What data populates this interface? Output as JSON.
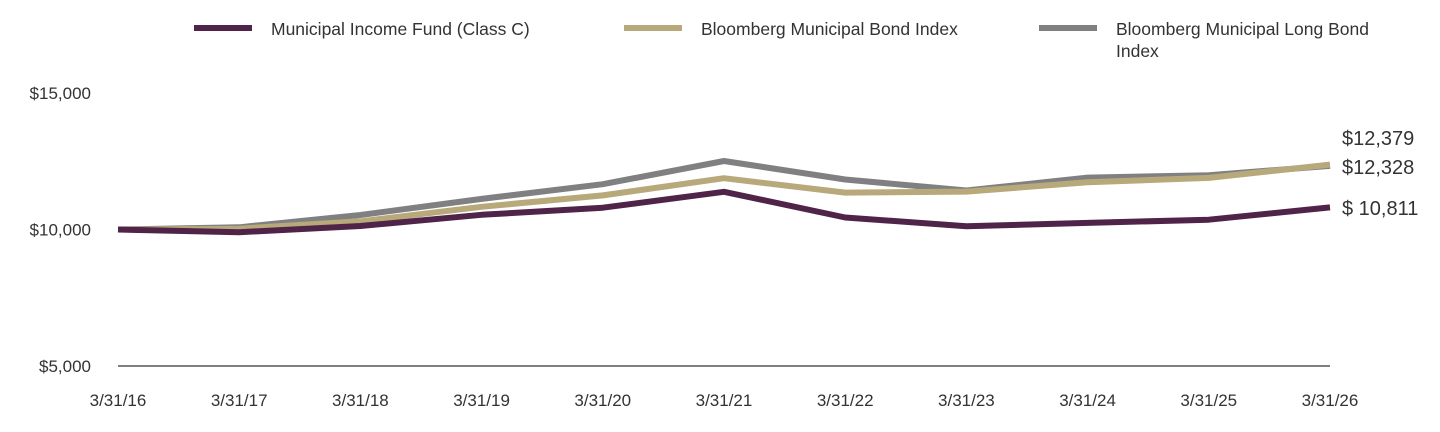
{
  "chart_data": {
    "type": "line",
    "title": "",
    "xlabel": "",
    "ylabel": "",
    "categories": [
      "3/31/16",
      "3/31/17",
      "3/31/18",
      "3/31/19",
      "3/31/20",
      "3/31/21",
      "3/31/22",
      "3/31/23",
      "3/31/24",
      "3/31/25",
      "3/31/26"
    ],
    "y_ticks": [
      {
        "value": 5000,
        "label": "$5,000"
      },
      {
        "value": 10000,
        "label": "$10,000"
      },
      {
        "value": 15000,
        "label": "$15,000"
      }
    ],
    "ylim": [
      5000,
      15000
    ],
    "grid": false,
    "legend_position": "top",
    "series": [
      {
        "name": "Municipal Income Fund (Class C)",
        "color": "#4f2448",
        "values": [
          10000,
          9900,
          10130,
          10540,
          10800,
          11380,
          10440,
          10120,
          10240,
          10360,
          10811
        ],
        "end_label": "$ 10,811"
      },
      {
        "name": "Bloomberg Municipal Bond Index",
        "color": "#b7a97a",
        "values": [
          10000,
          10030,
          10300,
          10830,
          11250,
          11880,
          11350,
          11390,
          11730,
          11890,
          12379
        ],
        "end_label": "$12,379"
      },
      {
        "name": "Bloomberg Municipal Long Bond Index",
        "color": "#808083",
        "values": [
          10000,
          10080,
          10530,
          11120,
          11660,
          12510,
          11830,
          11430,
          11900,
          11990,
          12328
        ],
        "end_label": "$12,328"
      }
    ]
  }
}
